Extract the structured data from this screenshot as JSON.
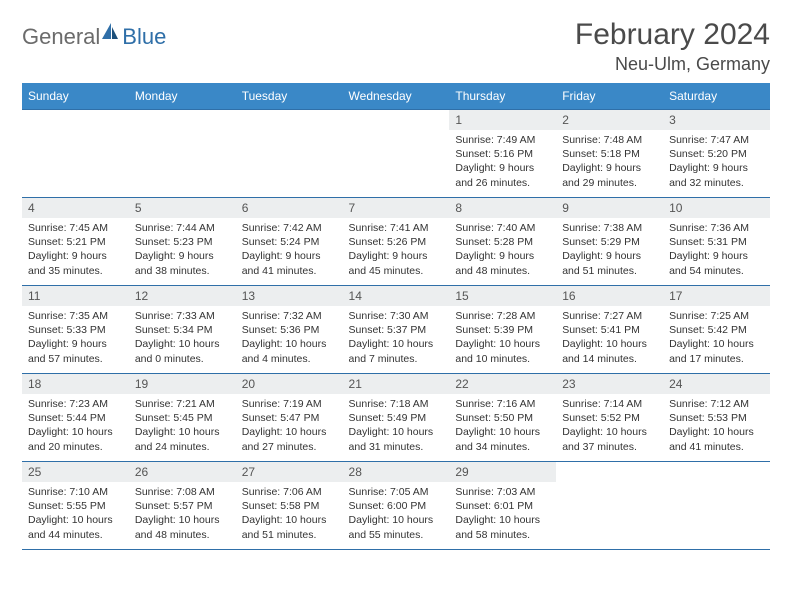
{
  "brand": {
    "part1": "General",
    "part2": "Blue"
  },
  "title": "February 2024",
  "location": "Neu-Ulm, Germany",
  "colors": {
    "header_bg": "#3a88c7",
    "border": "#2f6fa8",
    "daynum_bg": "#eceeef",
    "text": "#333333",
    "title_text": "#4a4a4a",
    "logo_gray": "#6b6b6b",
    "logo_blue": "#2f6fa8"
  },
  "day_headers": [
    "Sunday",
    "Monday",
    "Tuesday",
    "Wednesday",
    "Thursday",
    "Friday",
    "Saturday"
  ],
  "weeks": [
    [
      {
        "empty": true
      },
      {
        "empty": true
      },
      {
        "empty": true
      },
      {
        "empty": true
      },
      {
        "num": "1",
        "sunrise": "Sunrise: 7:49 AM",
        "sunset": "Sunset: 5:16 PM",
        "daylight": "Daylight: 9 hours and 26 minutes."
      },
      {
        "num": "2",
        "sunrise": "Sunrise: 7:48 AM",
        "sunset": "Sunset: 5:18 PM",
        "daylight": "Daylight: 9 hours and 29 minutes."
      },
      {
        "num": "3",
        "sunrise": "Sunrise: 7:47 AM",
        "sunset": "Sunset: 5:20 PM",
        "daylight": "Daylight: 9 hours and 32 minutes."
      }
    ],
    [
      {
        "num": "4",
        "sunrise": "Sunrise: 7:45 AM",
        "sunset": "Sunset: 5:21 PM",
        "daylight": "Daylight: 9 hours and 35 minutes."
      },
      {
        "num": "5",
        "sunrise": "Sunrise: 7:44 AM",
        "sunset": "Sunset: 5:23 PM",
        "daylight": "Daylight: 9 hours and 38 minutes."
      },
      {
        "num": "6",
        "sunrise": "Sunrise: 7:42 AM",
        "sunset": "Sunset: 5:24 PM",
        "daylight": "Daylight: 9 hours and 41 minutes."
      },
      {
        "num": "7",
        "sunrise": "Sunrise: 7:41 AM",
        "sunset": "Sunset: 5:26 PM",
        "daylight": "Daylight: 9 hours and 45 minutes."
      },
      {
        "num": "8",
        "sunrise": "Sunrise: 7:40 AM",
        "sunset": "Sunset: 5:28 PM",
        "daylight": "Daylight: 9 hours and 48 minutes."
      },
      {
        "num": "9",
        "sunrise": "Sunrise: 7:38 AM",
        "sunset": "Sunset: 5:29 PM",
        "daylight": "Daylight: 9 hours and 51 minutes."
      },
      {
        "num": "10",
        "sunrise": "Sunrise: 7:36 AM",
        "sunset": "Sunset: 5:31 PM",
        "daylight": "Daylight: 9 hours and 54 minutes."
      }
    ],
    [
      {
        "num": "11",
        "sunrise": "Sunrise: 7:35 AM",
        "sunset": "Sunset: 5:33 PM",
        "daylight": "Daylight: 9 hours and 57 minutes."
      },
      {
        "num": "12",
        "sunrise": "Sunrise: 7:33 AM",
        "sunset": "Sunset: 5:34 PM",
        "daylight": "Daylight: 10 hours and 0 minutes."
      },
      {
        "num": "13",
        "sunrise": "Sunrise: 7:32 AM",
        "sunset": "Sunset: 5:36 PM",
        "daylight": "Daylight: 10 hours and 4 minutes."
      },
      {
        "num": "14",
        "sunrise": "Sunrise: 7:30 AM",
        "sunset": "Sunset: 5:37 PM",
        "daylight": "Daylight: 10 hours and 7 minutes."
      },
      {
        "num": "15",
        "sunrise": "Sunrise: 7:28 AM",
        "sunset": "Sunset: 5:39 PM",
        "daylight": "Daylight: 10 hours and 10 minutes."
      },
      {
        "num": "16",
        "sunrise": "Sunrise: 7:27 AM",
        "sunset": "Sunset: 5:41 PM",
        "daylight": "Daylight: 10 hours and 14 minutes."
      },
      {
        "num": "17",
        "sunrise": "Sunrise: 7:25 AM",
        "sunset": "Sunset: 5:42 PM",
        "daylight": "Daylight: 10 hours and 17 minutes."
      }
    ],
    [
      {
        "num": "18",
        "sunrise": "Sunrise: 7:23 AM",
        "sunset": "Sunset: 5:44 PM",
        "daylight": "Daylight: 10 hours and 20 minutes."
      },
      {
        "num": "19",
        "sunrise": "Sunrise: 7:21 AM",
        "sunset": "Sunset: 5:45 PM",
        "daylight": "Daylight: 10 hours and 24 minutes."
      },
      {
        "num": "20",
        "sunrise": "Sunrise: 7:19 AM",
        "sunset": "Sunset: 5:47 PM",
        "daylight": "Daylight: 10 hours and 27 minutes."
      },
      {
        "num": "21",
        "sunrise": "Sunrise: 7:18 AM",
        "sunset": "Sunset: 5:49 PM",
        "daylight": "Daylight: 10 hours and 31 minutes."
      },
      {
        "num": "22",
        "sunrise": "Sunrise: 7:16 AM",
        "sunset": "Sunset: 5:50 PM",
        "daylight": "Daylight: 10 hours and 34 minutes."
      },
      {
        "num": "23",
        "sunrise": "Sunrise: 7:14 AM",
        "sunset": "Sunset: 5:52 PM",
        "daylight": "Daylight: 10 hours and 37 minutes."
      },
      {
        "num": "24",
        "sunrise": "Sunrise: 7:12 AM",
        "sunset": "Sunset: 5:53 PM",
        "daylight": "Daylight: 10 hours and 41 minutes."
      }
    ],
    [
      {
        "num": "25",
        "sunrise": "Sunrise: 7:10 AM",
        "sunset": "Sunset: 5:55 PM",
        "daylight": "Daylight: 10 hours and 44 minutes."
      },
      {
        "num": "26",
        "sunrise": "Sunrise: 7:08 AM",
        "sunset": "Sunset: 5:57 PM",
        "daylight": "Daylight: 10 hours and 48 minutes."
      },
      {
        "num": "27",
        "sunrise": "Sunrise: 7:06 AM",
        "sunset": "Sunset: 5:58 PM",
        "daylight": "Daylight: 10 hours and 51 minutes."
      },
      {
        "num": "28",
        "sunrise": "Sunrise: 7:05 AM",
        "sunset": "Sunset: 6:00 PM",
        "daylight": "Daylight: 10 hours and 55 minutes."
      },
      {
        "num": "29",
        "sunrise": "Sunrise: 7:03 AM",
        "sunset": "Sunset: 6:01 PM",
        "daylight": "Daylight: 10 hours and 58 minutes."
      },
      {
        "empty": true
      },
      {
        "empty": true
      }
    ]
  ]
}
